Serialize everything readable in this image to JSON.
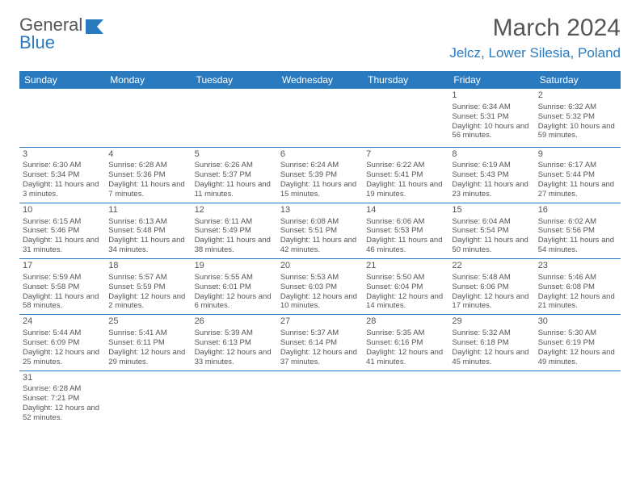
{
  "brand": {
    "first": "General",
    "second": "Blue"
  },
  "title": {
    "month": "March 2024",
    "location": "Jelcz, Lower Silesia, Poland"
  },
  "colors": {
    "accent": "#2a7ac0",
    "text": "#555555",
    "bg": "#ffffff"
  },
  "daysOfWeek": [
    "Sunday",
    "Monday",
    "Tuesday",
    "Wednesday",
    "Thursday",
    "Friday",
    "Saturday"
  ],
  "weeks": [
    [
      null,
      null,
      null,
      null,
      null,
      {
        "n": "1",
        "sr": "6:34 AM",
        "ss": "5:31 PM",
        "dl": "10 hours and 56 minutes."
      },
      {
        "n": "2",
        "sr": "6:32 AM",
        "ss": "5:32 PM",
        "dl": "10 hours and 59 minutes."
      }
    ],
    [
      {
        "n": "3",
        "sr": "6:30 AM",
        "ss": "5:34 PM",
        "dl": "11 hours and 3 minutes."
      },
      {
        "n": "4",
        "sr": "6:28 AM",
        "ss": "5:36 PM",
        "dl": "11 hours and 7 minutes."
      },
      {
        "n": "5",
        "sr": "6:26 AM",
        "ss": "5:37 PM",
        "dl": "11 hours and 11 minutes."
      },
      {
        "n": "6",
        "sr": "6:24 AM",
        "ss": "5:39 PM",
        "dl": "11 hours and 15 minutes."
      },
      {
        "n": "7",
        "sr": "6:22 AM",
        "ss": "5:41 PM",
        "dl": "11 hours and 19 minutes."
      },
      {
        "n": "8",
        "sr": "6:19 AM",
        "ss": "5:43 PM",
        "dl": "11 hours and 23 minutes."
      },
      {
        "n": "9",
        "sr": "6:17 AM",
        "ss": "5:44 PM",
        "dl": "11 hours and 27 minutes."
      }
    ],
    [
      {
        "n": "10",
        "sr": "6:15 AM",
        "ss": "5:46 PM",
        "dl": "11 hours and 31 minutes."
      },
      {
        "n": "11",
        "sr": "6:13 AM",
        "ss": "5:48 PM",
        "dl": "11 hours and 34 minutes."
      },
      {
        "n": "12",
        "sr": "6:11 AM",
        "ss": "5:49 PM",
        "dl": "11 hours and 38 minutes."
      },
      {
        "n": "13",
        "sr": "6:08 AM",
        "ss": "5:51 PM",
        "dl": "11 hours and 42 minutes."
      },
      {
        "n": "14",
        "sr": "6:06 AM",
        "ss": "5:53 PM",
        "dl": "11 hours and 46 minutes."
      },
      {
        "n": "15",
        "sr": "6:04 AM",
        "ss": "5:54 PM",
        "dl": "11 hours and 50 minutes."
      },
      {
        "n": "16",
        "sr": "6:02 AM",
        "ss": "5:56 PM",
        "dl": "11 hours and 54 minutes."
      }
    ],
    [
      {
        "n": "17",
        "sr": "5:59 AM",
        "ss": "5:58 PM",
        "dl": "11 hours and 58 minutes."
      },
      {
        "n": "18",
        "sr": "5:57 AM",
        "ss": "5:59 PM",
        "dl": "12 hours and 2 minutes."
      },
      {
        "n": "19",
        "sr": "5:55 AM",
        "ss": "6:01 PM",
        "dl": "12 hours and 6 minutes."
      },
      {
        "n": "20",
        "sr": "5:53 AM",
        "ss": "6:03 PM",
        "dl": "12 hours and 10 minutes."
      },
      {
        "n": "21",
        "sr": "5:50 AM",
        "ss": "6:04 PM",
        "dl": "12 hours and 14 minutes."
      },
      {
        "n": "22",
        "sr": "5:48 AM",
        "ss": "6:06 PM",
        "dl": "12 hours and 17 minutes."
      },
      {
        "n": "23",
        "sr": "5:46 AM",
        "ss": "6:08 PM",
        "dl": "12 hours and 21 minutes."
      }
    ],
    [
      {
        "n": "24",
        "sr": "5:44 AM",
        "ss": "6:09 PM",
        "dl": "12 hours and 25 minutes."
      },
      {
        "n": "25",
        "sr": "5:41 AM",
        "ss": "6:11 PM",
        "dl": "12 hours and 29 minutes."
      },
      {
        "n": "26",
        "sr": "5:39 AM",
        "ss": "6:13 PM",
        "dl": "12 hours and 33 minutes."
      },
      {
        "n": "27",
        "sr": "5:37 AM",
        "ss": "6:14 PM",
        "dl": "12 hours and 37 minutes."
      },
      {
        "n": "28",
        "sr": "5:35 AM",
        "ss": "6:16 PM",
        "dl": "12 hours and 41 minutes."
      },
      {
        "n": "29",
        "sr": "5:32 AM",
        "ss": "6:18 PM",
        "dl": "12 hours and 45 minutes."
      },
      {
        "n": "30",
        "sr": "5:30 AM",
        "ss": "6:19 PM",
        "dl": "12 hours and 49 minutes."
      }
    ],
    [
      {
        "n": "31",
        "sr": "6:28 AM",
        "ss": "7:21 PM",
        "dl": "12 hours and 52 minutes."
      },
      null,
      null,
      null,
      null,
      null,
      null
    ]
  ],
  "labels": {
    "sunrise": "Sunrise:",
    "sunset": "Sunset:",
    "daylight": "Daylight:"
  }
}
